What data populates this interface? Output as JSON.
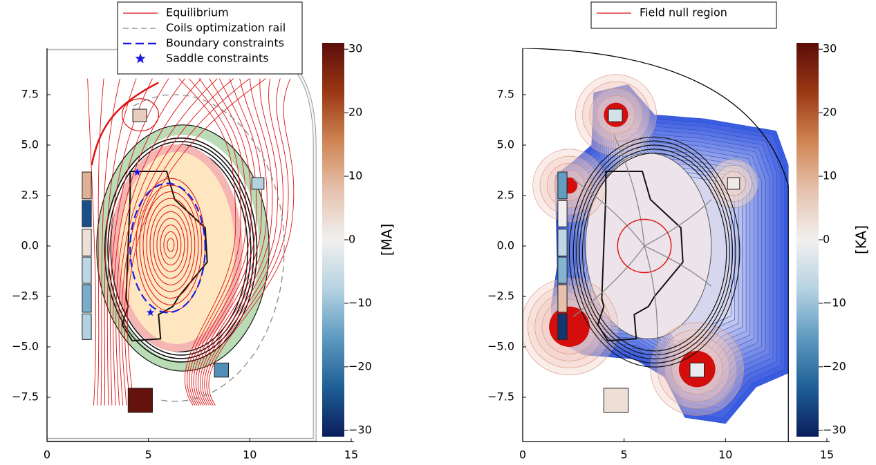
{
  "chart_data": [
    {
      "type": "coil-equilibrium",
      "xlim": [
        0,
        15
      ],
      "ylim": [
        -9.7,
        9.8
      ],
      "xticks": [
        0,
        5,
        10,
        15
      ],
      "yticks": [
        {
          "value": -7.5,
          "label": "−7.5"
        },
        {
          "value": -5,
          "label": "−5.0"
        },
        {
          "value": -2.5,
          "label": "−2.5"
        },
        {
          "value": 0,
          "label": "0.0"
        },
        {
          "value": 2.5,
          "label": "2.5"
        },
        {
          "value": 5,
          "label": "5.0"
        },
        7.5
      ],
      "legend": [
        {
          "name": "Equilibrium",
          "color": "#e01010",
          "style": "solid"
        },
        {
          "name": "Coils optimization rail",
          "color": "#808080",
          "style": "dashed"
        },
        {
          "name": "Boundary constraints",
          "color": "#1a1ae0",
          "style": "dashed-thick"
        },
        {
          "name": "Saddle constraints",
          "color": "#1a1ae0",
          "style": "star"
        }
      ],
      "colorbar": {
        "label": "[MA]",
        "clim": [
          -31,
          31
        ],
        "ticks": [
          {
            "value": -30,
            "label": "−30"
          },
          {
            "value": -20,
            "label": "−20"
          },
          {
            "value": -10,
            "label": "−10"
          },
          0,
          10,
          20,
          30
        ],
        "colormap": [
          "#0a1d5c",
          "#1f5f96",
          "#5d9ac0",
          "#b6d3e2",
          "#f1f0ef",
          "#e6c2ae",
          "#cf8553",
          "#9a3814",
          "#5b0d0a"
        ]
      },
      "coils": [
        {
          "r": 4.57,
          "z": 6.47,
          "width": 0.68,
          "height": 0.62,
          "current": 6
        },
        {
          "r": 10.4,
          "z": 3.1,
          "width": 0.6,
          "height": 0.58,
          "current": -8
        },
        {
          "r": 8.6,
          "z": -6.15,
          "width": 0.7,
          "height": 0.7,
          "current": -17
        },
        {
          "r": 4.6,
          "z": -7.65,
          "width": 1.2,
          "height": 1.2,
          "current": 30
        },
        {
          "r": 1.96,
          "z": 3.0,
          "width": 0.45,
          "height": 1.33,
          "current": 10
        },
        {
          "r": 1.96,
          "z": 1.6,
          "width": 0.45,
          "height": 1.3,
          "current": -25
        },
        {
          "r": 1.96,
          "z": 0.17,
          "width": 0.45,
          "height": 1.33,
          "current": 3
        },
        {
          "r": 1.96,
          "z": -1.2,
          "width": 0.45,
          "height": 1.3,
          "current": -7
        },
        {
          "r": 1.96,
          "z": -2.6,
          "width": 0.45,
          "height": 1.37,
          "current": -13
        },
        {
          "r": 1.96,
          "z": -4.0,
          "width": 0.45,
          "height": 1.27,
          "current": -8
        }
      ],
      "saddle_constraints": {
        "x": [
          4.45,
          5.1
        ],
        "y": [
          3.65,
          -3.3
        ]
      }
    },
    {
      "type": "field-null",
      "xlim": [
        0,
        15
      ],
      "ylim": [
        -9.7,
        9.8
      ],
      "xticks": [
        0,
        5,
        10,
        15
      ],
      "yticks": [
        {
          "value": -7.5,
          "label": "−7.5"
        },
        {
          "value": -5,
          "label": "−5.0"
        },
        {
          "value": -2.5,
          "label": "−2.5"
        },
        {
          "value": 0,
          "label": "0.0"
        },
        {
          "value": 2.5,
          "label": "2.5"
        },
        {
          "value": 5,
          "label": "5.0"
        },
        7.5
      ],
      "legend": [
        {
          "name": "Field null region",
          "color": "#e01010",
          "style": "solid"
        }
      ],
      "colorbar": {
        "label": "[KA]",
        "clim": [
          -31,
          31
        ],
        "ticks": [
          {
            "value": -30,
            "label": "−30"
          },
          {
            "value": -20,
            "label": "−20"
          },
          {
            "value": -10,
            "label": "−10"
          },
          0,
          10,
          20,
          30
        ],
        "colormap": [
          "#0a1d5c",
          "#1f5f96",
          "#5d9ac0",
          "#b6d3e2",
          "#f1f0ef",
          "#e6c2ae",
          "#cf8553",
          "#9a3814",
          "#5b0d0a"
        ]
      },
      "coils": [
        {
          "r": 4.57,
          "z": 6.47,
          "width": 0.68,
          "height": 0.62,
          "current": -4
        },
        {
          "r": 10.4,
          "z": 3.1,
          "width": 0.6,
          "height": 0.58,
          "current": 1
        },
        {
          "r": 8.6,
          "z": -6.15,
          "width": 0.7,
          "height": 0.7,
          "current": -1
        },
        {
          "r": 4.6,
          "z": -7.65,
          "width": 1.2,
          "height": 1.2,
          "current": 3
        },
        {
          "r": 1.96,
          "z": 3.0,
          "width": 0.45,
          "height": 1.33,
          "current": -15
        },
        {
          "r": 1.96,
          "z": 1.6,
          "width": 0.45,
          "height": 1.3,
          "current": 0
        },
        {
          "r": 1.96,
          "z": 0.17,
          "width": 0.45,
          "height": 1.33,
          "current": -7
        },
        {
          "r": 1.96,
          "z": -1.2,
          "width": 0.45,
          "height": 1.3,
          "current": -12
        },
        {
          "r": 1.96,
          "z": -2.6,
          "width": 0.45,
          "height": 1.37,
          "current": 8
        },
        {
          "r": 1.96,
          "z": -4.0,
          "width": 0.45,
          "height": 1.27,
          "current": -28
        }
      ]
    }
  ]
}
